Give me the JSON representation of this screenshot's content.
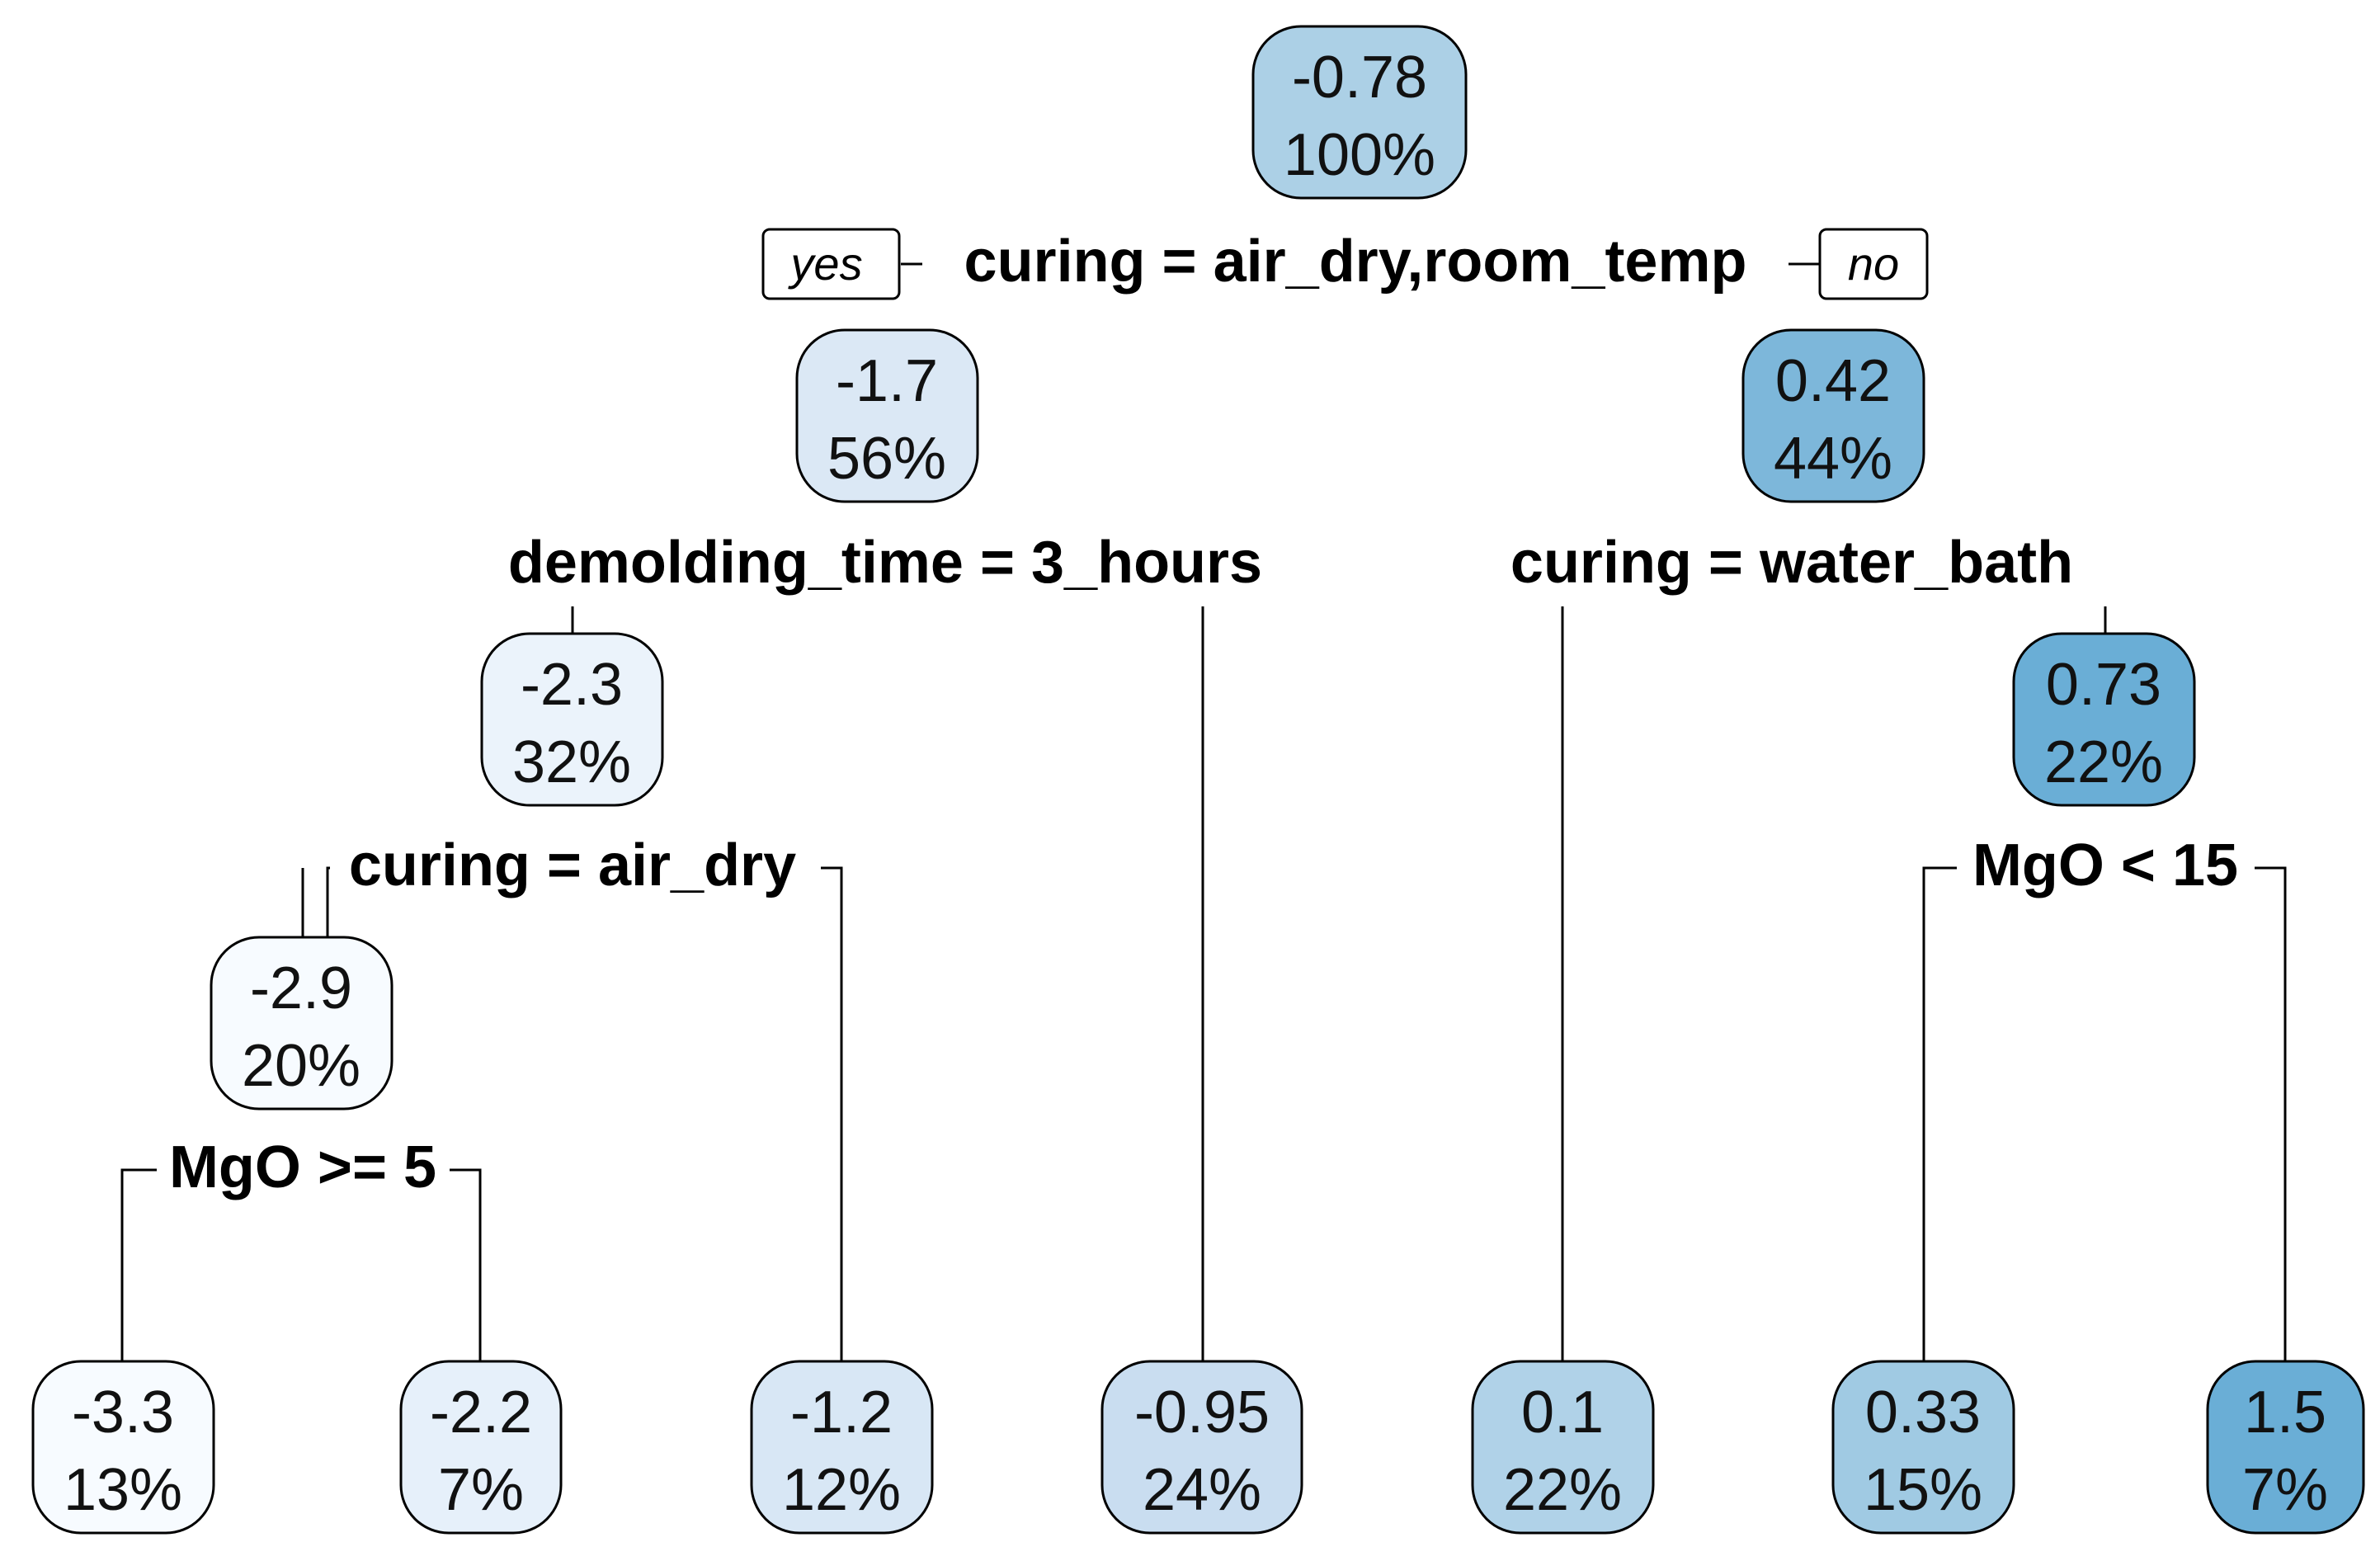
{
  "tree": {
    "nodes": [
      {
        "id": "root",
        "value": "-0.78",
        "percent": "100%",
        "fill": "#acd0e6"
      },
      {
        "id": "n2",
        "value": "-1.7",
        "percent": "56%",
        "fill": "#dbe8f5"
      },
      {
        "id": "n3",
        "value": "0.42",
        "percent": "44%",
        "fill": "#7db7da"
      },
      {
        "id": "n4",
        "value": "-2.3",
        "percent": "32%",
        "fill": "#ebf3fb"
      },
      {
        "id": "n7",
        "value": "0.73",
        "percent": "22%",
        "fill": "#6aaed6"
      },
      {
        "id": "n8",
        "value": "-2.9",
        "percent": "20%",
        "fill": "#f7fbff"
      },
      {
        "id": "l1",
        "value": "-3.3",
        "percent": "13%",
        "fill": "#f7fbff"
      },
      {
        "id": "l2",
        "value": "-2.2",
        "percent": "7%",
        "fill": "#e6f0fa"
      },
      {
        "id": "l3",
        "value": "-1.2",
        "percent": "12%",
        "fill": "#d8e7f5"
      },
      {
        "id": "l4",
        "value": "-0.95",
        "percent": "24%",
        "fill": "#c9ddf0"
      },
      {
        "id": "l5",
        "value": "0.1",
        "percent": "22%",
        "fill": "#b0d2e8"
      },
      {
        "id": "l6",
        "value": "0.33",
        "percent": "15%",
        "fill": "#a0cae3"
      },
      {
        "id": "l7",
        "value": "1.5",
        "percent": "7%",
        "fill": "#6aaed6"
      }
    ],
    "splits": [
      {
        "id": "s1",
        "label": "curing = air_dry,room_temp"
      },
      {
        "id": "s2",
        "label": "demolding_time = 3_hours"
      },
      {
        "id": "s3",
        "label": "curing = water_bath"
      },
      {
        "id": "s4",
        "label": "curing = air_dry"
      },
      {
        "id": "s5",
        "label": "MgO < 15"
      },
      {
        "id": "s6",
        "label": "MgO >= 5"
      }
    ],
    "yes_label": "yes",
    "no_label": "no"
  }
}
